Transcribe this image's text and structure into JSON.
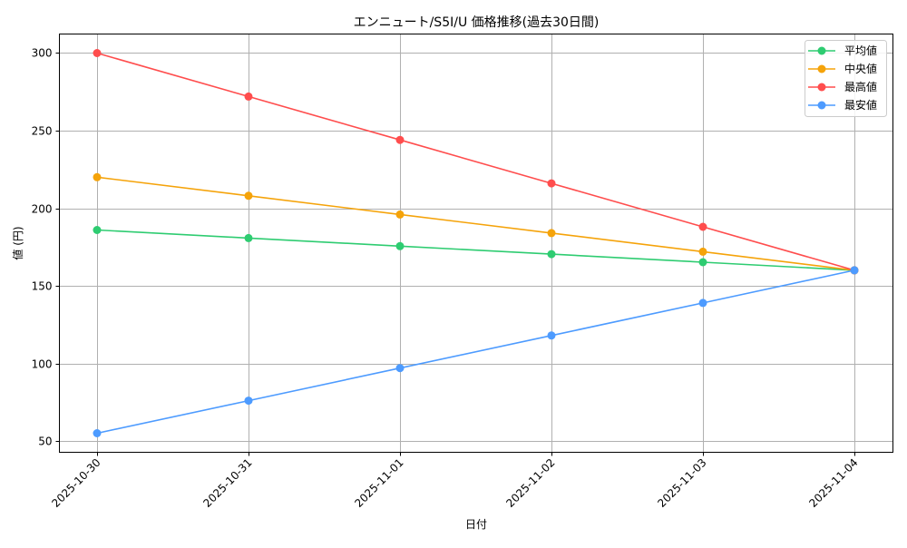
{
  "chart_data": {
    "type": "line",
    "title": "エンニュート/S5I/U 価格推移(過去30日間)",
    "xlabel": "日付",
    "ylabel": "値 (円)",
    "categories": [
      "2025-10-30",
      "2025-10-31",
      "2025-11-01",
      "2025-11-02",
      "2025-11-03",
      "2025-11-04"
    ],
    "series": [
      {
        "name": "平均値",
        "color": "#2ecc71",
        "values": [
          186.0,
          180.8,
          175.6,
          170.4,
          165.2,
          160.0
        ]
      },
      {
        "name": "中央値",
        "color": "#f5a30a",
        "values": [
          220,
          208,
          196,
          184,
          172,
          160
        ]
      },
      {
        "name": "最高値",
        "color": "#ff4d4d",
        "values": [
          300,
          272,
          244,
          216,
          188,
          160
        ]
      },
      {
        "name": "最安値",
        "color": "#4d9bff",
        "values": [
          55,
          76,
          97,
          118,
          139,
          160
        ]
      }
    ],
    "yticks": [
      50,
      100,
      150,
      200,
      250,
      300
    ],
    "ylim": [
      42.75,
      312.25
    ],
    "grid": true,
    "legend_position": "upper right",
    "marker": "circle",
    "xtick_rotation": 45
  }
}
